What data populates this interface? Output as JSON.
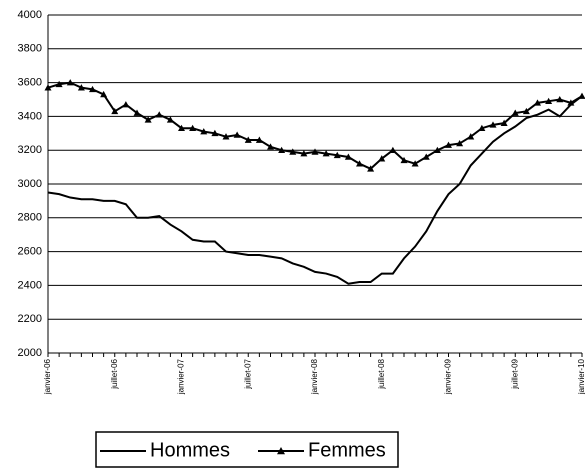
{
  "chart_data": {
    "type": "line",
    "categories": [
      "janvier-06",
      null,
      null,
      null,
      null,
      null,
      "juillet-06",
      null,
      null,
      null,
      null,
      null,
      "janvier-07",
      null,
      null,
      null,
      null,
      null,
      "juillet-07",
      null,
      null,
      null,
      null,
      null,
      "janvier-08",
      null,
      null,
      null,
      null,
      null,
      "juillet-08",
      null,
      null,
      null,
      null,
      null,
      "janvier-09",
      null,
      null,
      null,
      null,
      null,
      "juillet-09",
      null,
      null,
      null,
      null,
      null,
      "janvier-10"
    ],
    "series": [
      {
        "name": "Hommes",
        "color": "#000000",
        "marker": "none",
        "values": [
          2950,
          2940,
          2920,
          2910,
          2910,
          2900,
          2900,
          2880,
          2800,
          2800,
          2810,
          2760,
          2720,
          2670,
          2660,
          2660,
          2600,
          2590,
          2580,
          2580,
          2570,
          2560,
          2530,
          2510,
          2480,
          2470,
          2450,
          2410,
          2420,
          2420,
          2470,
          2470,
          2560,
          2630,
          2720,
          2840,
          2940,
          3000,
          3110,
          3180,
          3250,
          3300,
          3340,
          3390,
          3410,
          3440,
          3400,
          3470,
          3520
        ]
      },
      {
        "name": "Femmes",
        "color": "#000000",
        "marker": "triangle",
        "values": [
          3570,
          3590,
          3600,
          3570,
          3560,
          3530,
          3430,
          3470,
          3420,
          3380,
          3410,
          3380,
          3330,
          3330,
          3310,
          3300,
          3280,
          3290,
          3260,
          3260,
          3220,
          3200,
          3190,
          3180,
          3190,
          3180,
          3170,
          3160,
          3120,
          3090,
          3150,
          3200,
          3140,
          3120,
          3160,
          3200,
          3230,
          3240,
          3280,
          3330,
          3350,
          3360,
          3420,
          3430,
          3480,
          3490,
          3500,
          3480,
          3520
        ]
      }
    ],
    "ylim": [
      2000,
      4000
    ],
    "yticks": [
      2000,
      2200,
      2400,
      2600,
      2800,
      3000,
      3200,
      3400,
      3600,
      3800,
      4000
    ],
    "grid": true,
    "legend": "bottom"
  }
}
